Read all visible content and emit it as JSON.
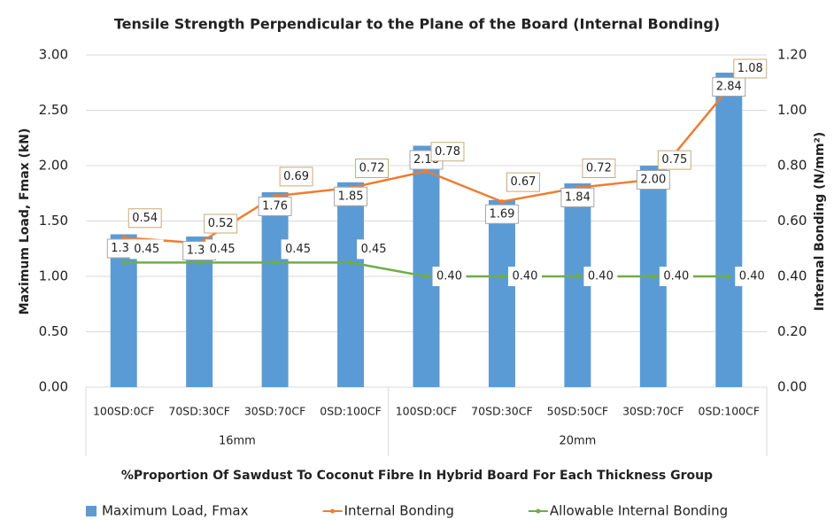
{
  "chart_data": {
    "type": "bar",
    "title": "Tensile Strength Perpendicular to the Plane of the Board (Internal Bonding)",
    "xlabel": "%Proportion Of Sawdust To Coconut Fibre In Hybrid Board For Each Thickness Group",
    "ylabel": "Maximum Load, Fmax (kN)",
    "y2label": "Internal Bonding (N/mm²)",
    "category_groups": [
      {
        "name": "16mm",
        "categories": [
          "100SD:0CF",
          "70SD:30CF",
          "30SD:70CF",
          "0SD:100CF"
        ]
      },
      {
        "name": "20mm",
        "categories": [
          "100SD:0CF",
          "70SD:30CF",
          "50SD:50CF",
          "30SD:70CF",
          "0SD:100CF"
        ]
      }
    ],
    "series": [
      {
        "name": "Maximum Load, Fmax",
        "type": "bar",
        "color": "#5b9bd5",
        "values": [
          1.38,
          1.36,
          1.76,
          1.85,
          2.18,
          1.69,
          1.84,
          2.0,
          2.84
        ],
        "value_labels": [
          "1.38",
          "1.36",
          "1.76",
          "1.85",
          "2.18",
          "1.69",
          "1.84",
          "2.00",
          "2.84"
        ]
      },
      {
        "name": "Internal Bonding",
        "type": "line",
        "axis": "y2",
        "color": "#ed7d31",
        "values": [
          0.54,
          0.52,
          0.69,
          0.72,
          0.78,
          0.67,
          0.72,
          0.75,
          1.08
        ],
        "value_labels": [
          "0.54",
          "0.52",
          "0.69",
          "0.72",
          "0.78",
          "0.67",
          "0.72",
          "0.75",
          "1.08"
        ]
      },
      {
        "name": "Allowable Internal Bonding",
        "type": "line",
        "axis": "y2",
        "color": "#70ad47",
        "values": [
          0.45,
          0.45,
          0.45,
          0.45,
          0.4,
          0.4,
          0.4,
          0.4,
          0.4
        ],
        "value_labels": [
          "0.45",
          "0.45",
          "0.45",
          "0.45",
          "0.40",
          "0.40",
          "0.40",
          "0.40",
          "0.40"
        ]
      }
    ],
    "ylim": [
      0,
      3
    ],
    "yticks": [
      {
        "value": 0,
        "label": "0.00"
      },
      {
        "value": 0.5,
        "label": "0.50"
      },
      {
        "value": 1,
        "label": "1.00"
      },
      {
        "value": 1.5,
        "label": "1.50"
      },
      {
        "value": 2,
        "label": "2.00"
      },
      {
        "value": 2.5,
        "label": "2.50"
      },
      {
        "value": 3,
        "label": "3.00"
      }
    ],
    "y2lim": [
      0,
      1.2
    ],
    "y2ticks": [
      {
        "value": 0,
        "label": "0.00"
      },
      {
        "value": 0.2,
        "label": "0.20"
      },
      {
        "value": 0.4,
        "label": "0.40"
      },
      {
        "value": 0.6,
        "label": "0.60"
      },
      {
        "value": 0.8,
        "label": "0.80"
      },
      {
        "value": 1,
        "label": "1.00"
      },
      {
        "value": 1.2,
        "label": "1.20"
      }
    ],
    "grid": true,
    "legend": "bottom"
  }
}
